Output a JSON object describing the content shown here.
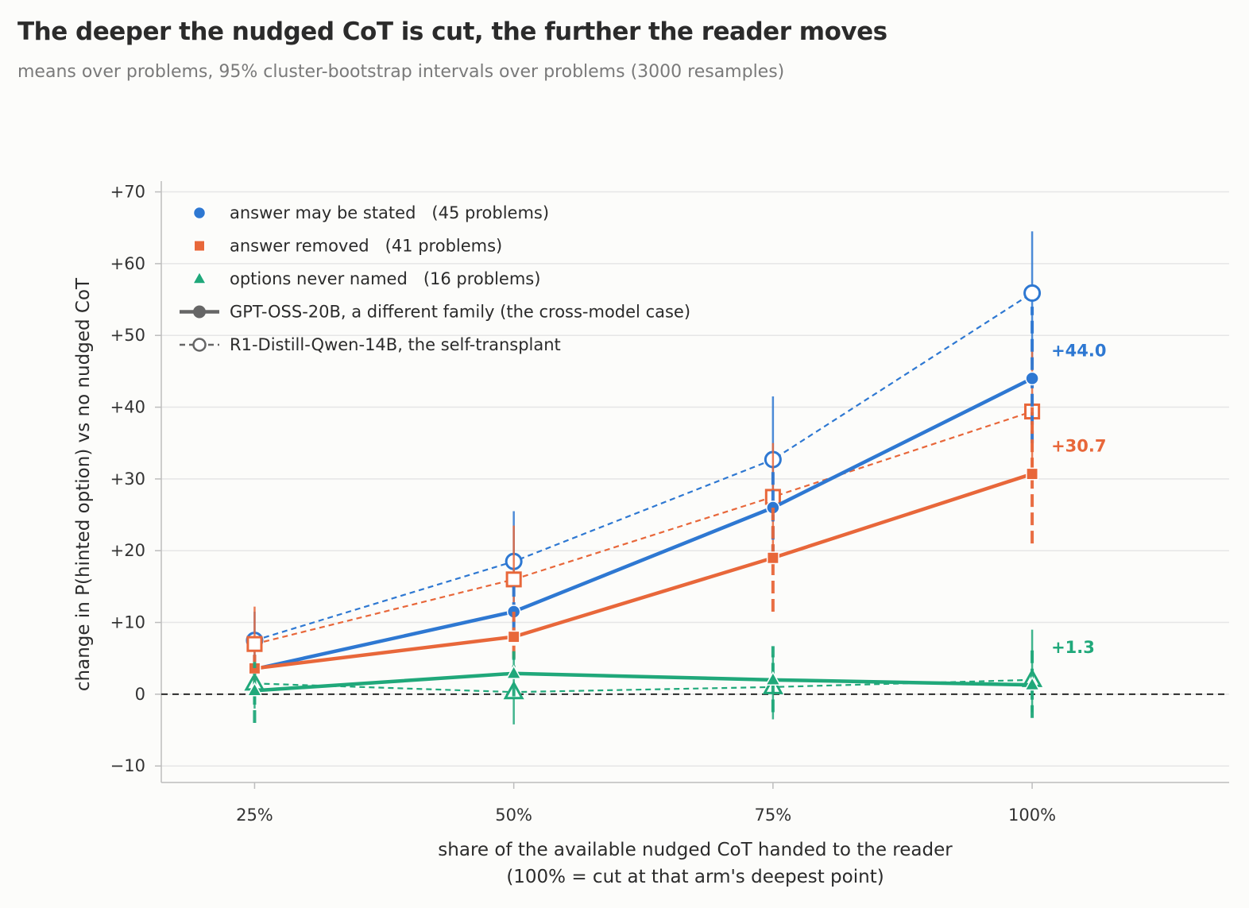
{
  "chart_data": {
    "type": "line",
    "title": "The deeper the nudged CoT is cut, the further the reader moves",
    "subtitle": "means over problems, 95% cluster-bootstrap intervals over problems (3000 resamples)",
    "xlabel": "share of the available nudged CoT handed to the reader",
    "xlabel_line2": "(100% = cut at that arm's deepest point)",
    "ylabel": "change in P(hinted option) vs no nudged CoT",
    "categories": [
      "25%",
      "50%",
      "75%",
      "100%"
    ],
    "x": [
      25,
      50,
      75,
      100
    ],
    "xlim": [
      16,
      119
    ],
    "ylim": [
      -12.3,
      71.5
    ],
    "yticks": [
      -10,
      0,
      10,
      20,
      30,
      40,
      50,
      60,
      70
    ],
    "ytick_labels": [
      "−10",
      "0",
      "+10",
      "+20",
      "+30",
      "+40",
      "+50",
      "+60",
      "+70"
    ],
    "grid": "horizontal",
    "zero_line": "dashed",
    "legend_position": "top-left",
    "groups": [
      {
        "legend": "answer may be stated",
        "count_label": "(45 problems)",
        "color": "#2e78d2",
        "marker": "circle",
        "end_label": "+44.0",
        "end_value": 44.0
      },
      {
        "legend": "answer removed",
        "count_label": "(41 problems)",
        "color": "#e8673a",
        "marker": "square",
        "end_label": "+30.7",
        "end_value": 30.7
      },
      {
        "legend": "options never named",
        "count_label": "(16 problems)",
        "color": "#20a87a",
        "marker": "triangle",
        "end_label": "+1.3",
        "end_value": 1.3
      }
    ],
    "style_legend": [
      {
        "label": "GPT-OSS-20B, a different family (the cross-model case)",
        "line": "solid",
        "marker": "filled",
        "color": "#666666"
      },
      {
        "label": "R1-Distill-Qwen-14B, the self-transplant",
        "line": "dashed",
        "marker": "hollow",
        "color": "#666666"
      }
    ],
    "series": [
      {
        "group": 0,
        "model": "GPT-OSS-20B",
        "style": "solid",
        "values": [
          3.5,
          11.5,
          26.0,
          44.0
        ],
        "ci_low": [
          2.0,
          8.5,
          19.0,
          35.0
        ],
        "ci_high": [
          5.5,
          15.0,
          31.0,
          54.0
        ]
      },
      {
        "group": 1,
        "model": "GPT-OSS-20B",
        "style": "solid",
        "values": [
          3.6,
          8.0,
          19.0,
          30.7
        ],
        "ci_low": [
          1.8,
          5.0,
          11.5,
          21.0
        ],
        "ci_high": [
          5.5,
          11.5,
          26.0,
          40.0
        ]
      },
      {
        "group": 2,
        "model": "GPT-OSS-20B",
        "style": "solid",
        "values": [
          0.5,
          2.9,
          2.0,
          1.3
        ],
        "ci_low": [
          -4.0,
          -0.3,
          -2.5,
          -3.3
        ],
        "ci_high": [
          4.5,
          6.0,
          6.7,
          6.2
        ]
      },
      {
        "group": 0,
        "model": "R1-Distill-Qwen-14B",
        "style": "dashed",
        "values": [
          7.5,
          18.5,
          32.7,
          55.9
        ],
        "ci_low": [
          3.0,
          12.0,
          24.0,
          46.0
        ],
        "ci_high": [
          11.5,
          25.5,
          41.5,
          64.5
        ]
      },
      {
        "group": 1,
        "model": "R1-Distill-Qwen-14B",
        "style": "dashed",
        "values": [
          7.0,
          16.0,
          27.5,
          39.4
        ],
        "ci_low": [
          2.5,
          9.5,
          19.5,
          31.0
        ],
        "ci_high": [
          12.2,
          23.5,
          35.0,
          48.0
        ]
      },
      {
        "group": 2,
        "model": "R1-Distill-Qwen-14B",
        "style": "dashed",
        "values": [
          1.5,
          0.3,
          1.0,
          2.0
        ],
        "ci_low": [
          -2.0,
          -4.2,
          -3.5,
          -2.5
        ],
        "ci_high": [
          5.0,
          5.0,
          5.5,
          9.0
        ]
      }
    ]
  }
}
